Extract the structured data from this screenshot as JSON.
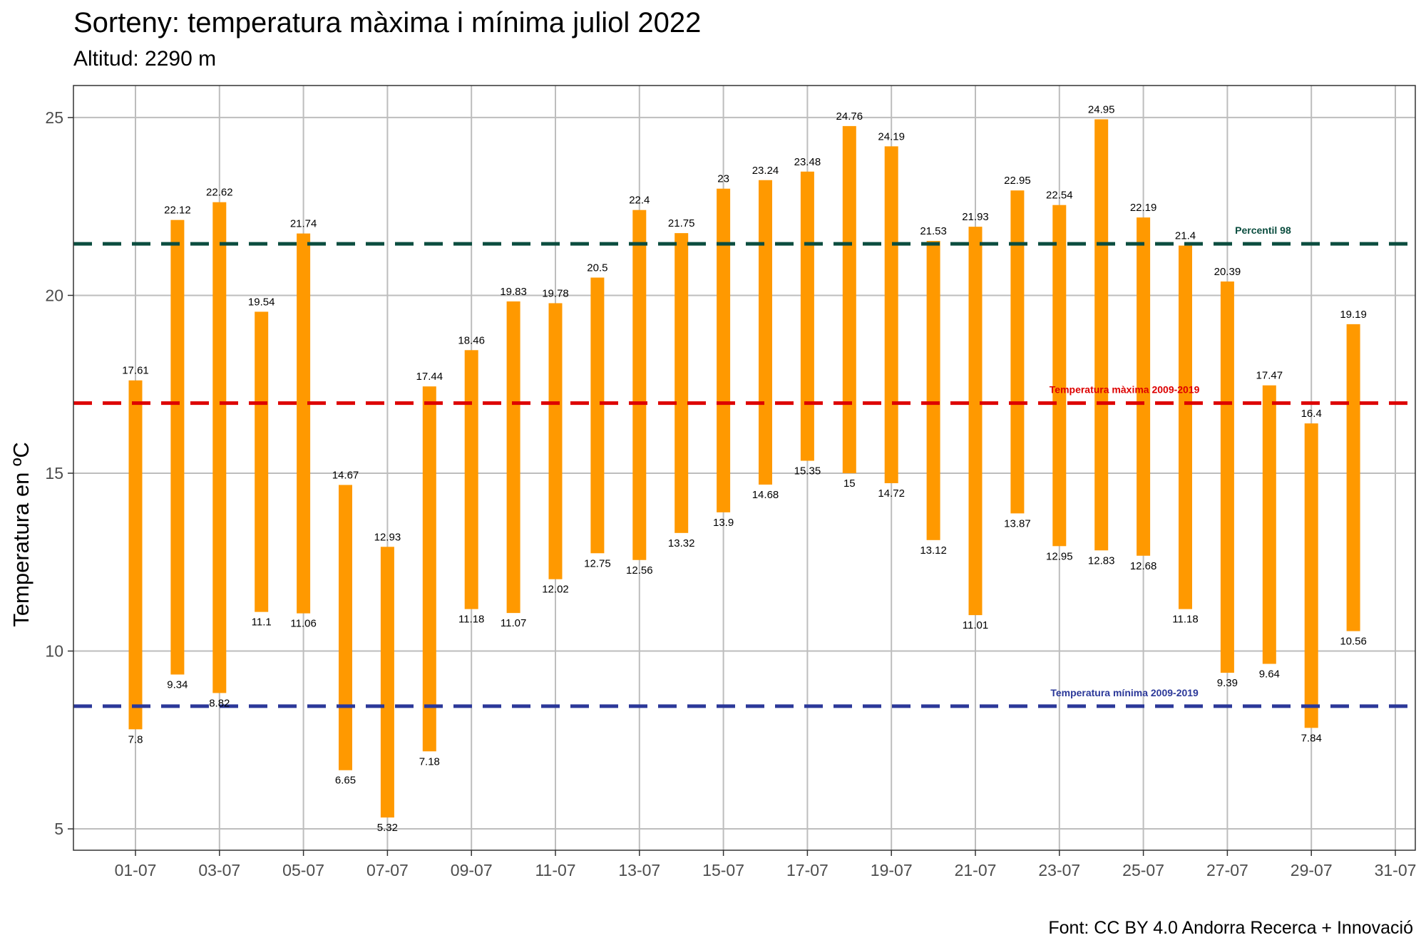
{
  "title": "Sorteny: temperatura màxima i mínima juliol 2022",
  "subtitle": "Altitud: 2290 m",
  "caption": "Font: CC BY 4.0 Andorra Recerca + Innovació",
  "chart_data": {
    "type": "bar",
    "ylabel": "Temperatura en ºC",
    "xlabel": "",
    "ylim": [
      4.4,
      25.9
    ],
    "yticks": [
      5,
      10,
      15,
      20,
      25
    ],
    "xticks": [
      "01-07",
      "03-07",
      "05-07",
      "07-07",
      "09-07",
      "11-07",
      "13-07",
      "15-07",
      "17-07",
      "19-07",
      "21-07",
      "23-07",
      "25-07",
      "27-07",
      "29-07",
      "31-07"
    ],
    "grid": true,
    "days": [
      "01-07",
      "02-07",
      "03-07",
      "04-07",
      "05-07",
      "06-07",
      "07-07",
      "08-07",
      "09-07",
      "10-07",
      "11-07",
      "12-07",
      "13-07",
      "14-07",
      "15-07",
      "16-07",
      "17-07",
      "18-07",
      "19-07",
      "20-07",
      "21-07",
      "22-07",
      "23-07",
      "24-07",
      "25-07",
      "26-07",
      "27-07",
      "28-07",
      "29-07",
      "30-07"
    ],
    "max": [
      17.61,
      22.12,
      22.62,
      19.54,
      21.74,
      14.67,
      12.93,
      17.44,
      18.46,
      19.83,
      19.78,
      20.5,
      22.4,
      21.75,
      23,
      23.24,
      23.48,
      24.76,
      24.19,
      21.53,
      21.93,
      22.95,
      22.54,
      24.95,
      22.19,
      21.4,
      20.39,
      17.47,
      16.4,
      19.19
    ],
    "min": [
      7.8,
      9.34,
      8.82,
      11.1,
      11.06,
      6.65,
      5.32,
      7.18,
      11.18,
      11.07,
      12.02,
      12.75,
      12.56,
      13.32,
      13.9,
      14.68,
      15.35,
      15,
      14.72,
      13.12,
      11.01,
      13.87,
      12.95,
      12.83,
      12.68,
      11.18,
      9.39,
      9.64,
      7.84,
      10.56
    ],
    "max_labels": [
      "17.61",
      "22.12",
      "22.62",
      "19.54",
      "21.74",
      "14.67",
      "12.93",
      "17.44",
      "18.46",
      "19.83",
      "19.78",
      "20.5",
      "22.4",
      "21.75",
      "23",
      "23.24",
      "23.48",
      "24.76",
      "24.19",
      "21.53",
      "21.93",
      "22.95",
      "22.54",
      "24.95",
      "22.19",
      "21.4",
      "20.39",
      "17.47",
      "16.4",
      "19.19"
    ],
    "min_labels": [
      "7.8",
      "9.34",
      "8.82",
      "11.1",
      "11.06",
      "6.65",
      "5.32",
      "7.18",
      "11.18",
      "11.07",
      "12.02",
      "12.75",
      "12.56",
      "13.32",
      "13.9",
      "14.68",
      "15.35",
      "15",
      "14.72",
      "13.12",
      "11.01",
      "13.87",
      "12.95",
      "12.83",
      "12.68",
      "11.18",
      "9.39",
      "9.64",
      "7.84",
      "10.56"
    ],
    "bar_color": "#FF9900",
    "reference_lines": [
      {
        "name": "Percentil 98",
        "value": 21.45,
        "color": "#0B4D3F",
        "label_day": 27.85
      },
      {
        "name": "Temperatura màxima 2009-2019",
        "value": 16.97,
        "color": "#DD0000",
        "label_day": 24.55
      },
      {
        "name": "Temperatura mínima 2009-2019",
        "value": 8.45,
        "color": "#2B3899",
        "label_day": 24.55
      }
    ]
  }
}
